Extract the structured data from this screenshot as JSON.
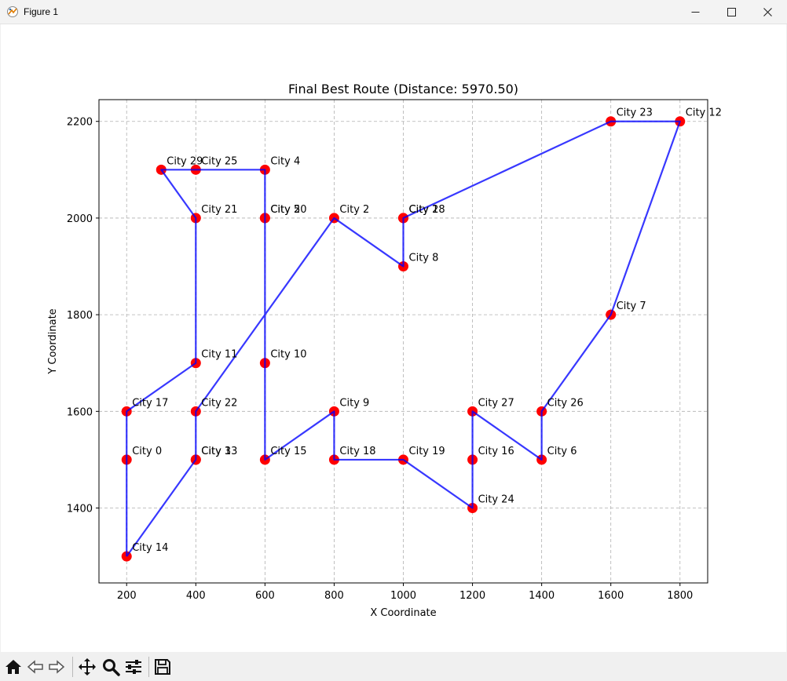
{
  "window": {
    "title": "Figure 1",
    "controls": [
      "minimize",
      "maximize",
      "close"
    ]
  },
  "toolbar": {
    "buttons": [
      "home-icon",
      "back-icon",
      "forward-icon",
      "pan-icon",
      "zoom-icon",
      "configure-subplots-icon",
      "save-icon"
    ]
  },
  "chart_data": {
    "type": "scatter",
    "title": "Final Best Route (Distance: 5970.50)",
    "xlabel": "X Coordinate",
    "ylabel": "Y Coordinate",
    "xlim": [
      120,
      1880
    ],
    "ylim": [
      1245,
      2245
    ],
    "xticks": [
      200,
      400,
      600,
      800,
      1000,
      1200,
      1400,
      1600,
      1800
    ],
    "yticks": [
      1400,
      1600,
      1800,
      2000,
      2200
    ],
    "grid": true,
    "colors": {
      "points": "#ff0000",
      "route": "#0000ff"
    },
    "cities": [
      {
        "label": "City 0",
        "x": 200,
        "y": 1500
      },
      {
        "label": "City 1",
        "x": 1000,
        "y": 2000
      },
      {
        "label": "City 2",
        "x": 800,
        "y": 2000
      },
      {
        "label": "City 3",
        "x": 400,
        "y": 1500
      },
      {
        "label": "City 4",
        "x": 600,
        "y": 2100
      },
      {
        "label": "City 5",
        "x": 600,
        "y": 2000
      },
      {
        "label": "City 6",
        "x": 1400,
        "y": 1500
      },
      {
        "label": "City 7",
        "x": 1600,
        "y": 1800
      },
      {
        "label": "City 8",
        "x": 1000,
        "y": 1900
      },
      {
        "label": "City 9",
        "x": 800,
        "y": 1600
      },
      {
        "label": "City 10",
        "x": 600,
        "y": 1700
      },
      {
        "label": "City 11",
        "x": 400,
        "y": 1700
      },
      {
        "label": "City 12",
        "x": 1800,
        "y": 2200
      },
      {
        "label": "City 13",
        "x": 400,
        "y": 1500
      },
      {
        "label": "City 14",
        "x": 200,
        "y": 1300
      },
      {
        "label": "City 15",
        "x": 600,
        "y": 1500
      },
      {
        "label": "City 16",
        "x": 1200,
        "y": 1500
      },
      {
        "label": "City 17",
        "x": 200,
        "y": 1600
      },
      {
        "label": "City 18",
        "x": 800,
        "y": 1500
      },
      {
        "label": "City 19",
        "x": 1000,
        "y": 1500
      },
      {
        "label": "City 20",
        "x": 600,
        "y": 2000
      },
      {
        "label": "City 21",
        "x": 400,
        "y": 2000
      },
      {
        "label": "City 22",
        "x": 400,
        "y": 1600
      },
      {
        "label": "City 23",
        "x": 1600,
        "y": 2200
      },
      {
        "label": "City 24",
        "x": 1200,
        "y": 1400
      },
      {
        "label": "City 25",
        "x": 400,
        "y": 2100
      },
      {
        "label": "City 26",
        "x": 1400,
        "y": 1600
      },
      {
        "label": "City 27",
        "x": 1200,
        "y": 1600
      },
      {
        "label": "City 28",
        "x": 1000,
        "y": 2000
      },
      {
        "label": "City 29",
        "x": 300,
        "y": 2100
      }
    ],
    "route": [
      [
        200,
        1300
      ],
      [
        400,
        1500
      ],
      [
        400,
        1600
      ],
      [
        800,
        2000
      ],
      [
        1000,
        1900
      ],
      [
        1000,
        2000
      ],
      [
        1600,
        2200
      ],
      [
        1800,
        2200
      ],
      [
        1600,
        1800
      ],
      [
        1400,
        1600
      ],
      [
        1400,
        1500
      ],
      [
        1200,
        1600
      ],
      [
        1200,
        1400
      ],
      [
        1000,
        1500
      ],
      [
        800,
        1500
      ],
      [
        800,
        1600
      ],
      [
        600,
        1500
      ],
      [
        600,
        2100
      ],
      [
        300,
        2100
      ],
      [
        400,
        2000
      ],
      [
        400,
        1700
      ],
      [
        200,
        1600
      ],
      [
        200,
        1300
      ]
    ]
  }
}
